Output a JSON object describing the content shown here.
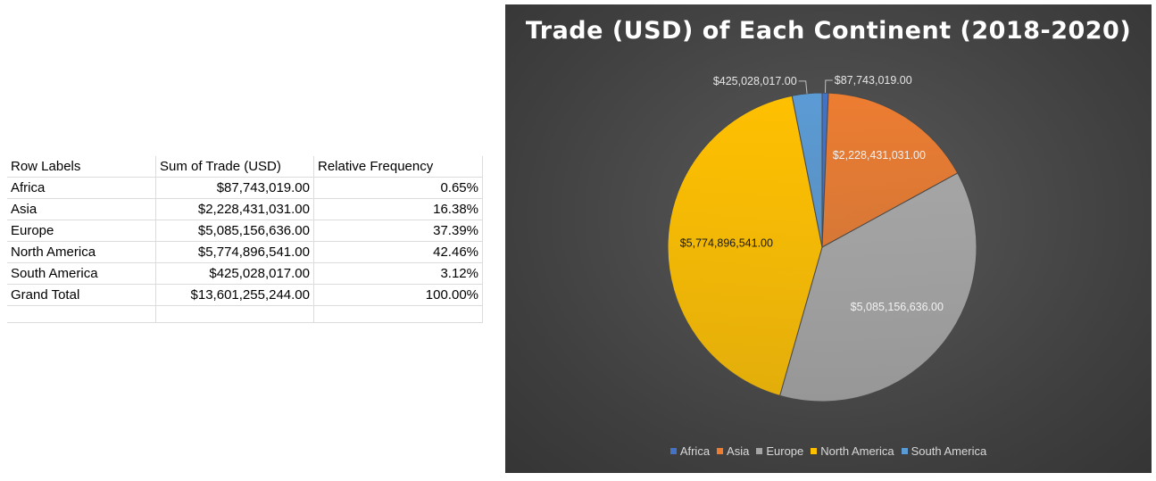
{
  "table": {
    "headers": [
      "Row Labels",
      "Sum of Trade (USD)",
      "Relative Frequency"
    ],
    "rows": [
      {
        "label": "Africa",
        "sum": "$87,743,019.00",
        "freq": "0.65%"
      },
      {
        "label": "Asia",
        "sum": "$2,228,431,031.00",
        "freq": "16.38%"
      },
      {
        "label": "Europe",
        "sum": "$5,085,156,636.00",
        "freq": "37.39%"
      },
      {
        "label": "North America",
        "sum": "$5,774,896,541.00",
        "freq": "42.46%"
      },
      {
        "label": "South America",
        "sum": "$425,028,017.00",
        "freq": "3.12%"
      }
    ],
    "total": {
      "label": "Grand Total",
      "sum": "$13,601,255,244.00",
      "freq": "100.00%"
    }
  },
  "chart_data": {
    "type": "pie",
    "title": "Trade (USD) of Each Continent (2018-2020)",
    "categories": [
      "Africa",
      "Asia",
      "Europe",
      "North America",
      "South America"
    ],
    "values": [
      87743019,
      2228431031,
      5085156636,
      5774896541,
      425028017
    ],
    "data_labels": [
      "$87,743,019.00",
      "$2,228,431,031.00",
      "$5,085,156,636.00",
      "$5,774,896,541.00",
      "$425,028,017.00"
    ],
    "colors": [
      "#4472c4",
      "#ed7d31",
      "#a5a5a5",
      "#ffc000",
      "#5b9bd5"
    ],
    "legend_position": "bottom"
  }
}
